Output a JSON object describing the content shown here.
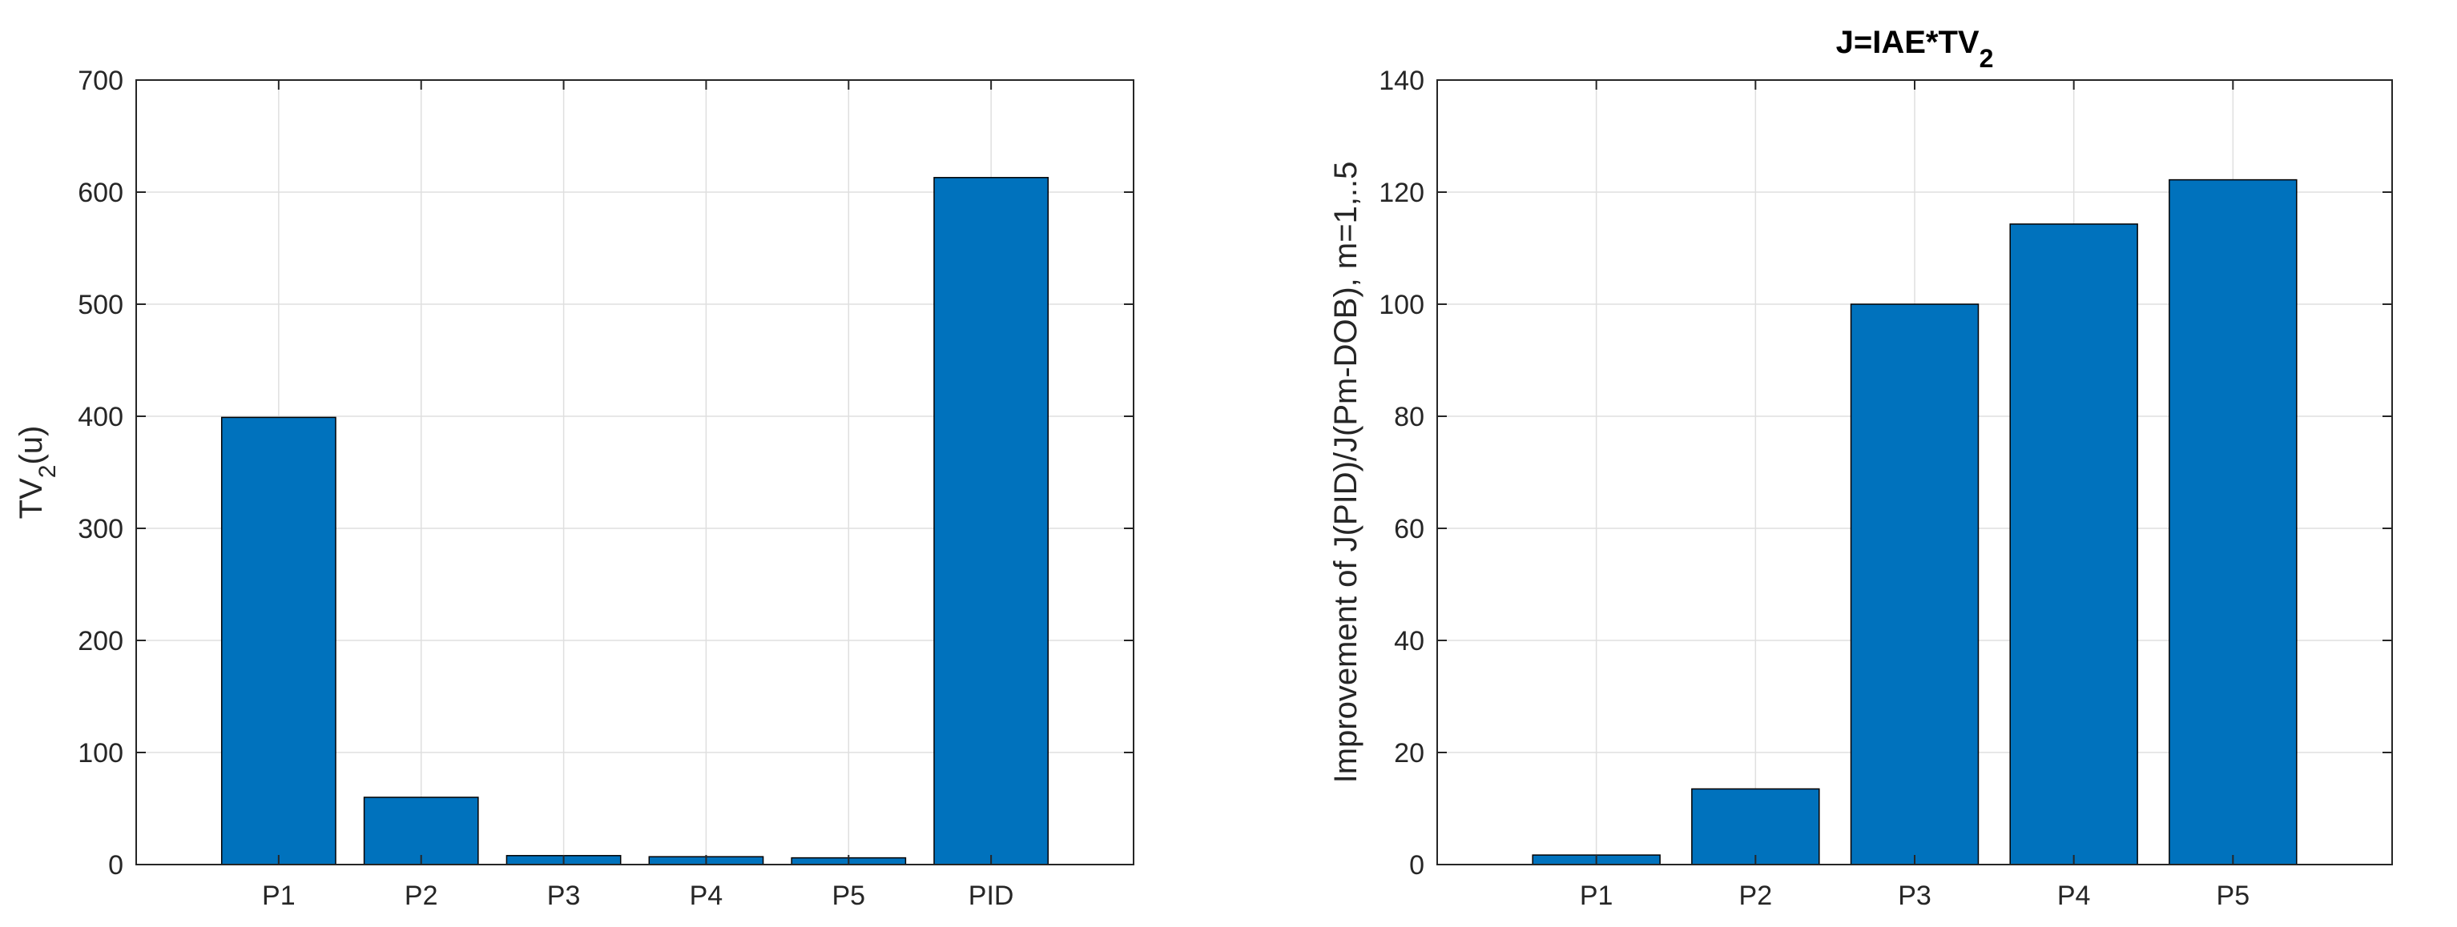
{
  "chart_data": [
    {
      "type": "bar",
      "title": "",
      "xlabel": "",
      "ylabel_main": "TV",
      "ylabel_sub": "2",
      "ylabel_tail": "(u)",
      "categories": [
        "P1",
        "P2",
        "P3",
        "P4",
        "P5",
        "PID"
      ],
      "values": [
        399,
        60,
        8,
        7,
        6,
        613
      ],
      "ylim": [
        0,
        700
      ],
      "yticks": [
        0,
        100,
        200,
        300,
        400,
        500,
        600,
        700
      ],
      "grid": true,
      "bar_color": "#0072BD"
    },
    {
      "type": "bar",
      "title_main": "J=IAE*TV",
      "title_sub": "2",
      "xlabel": "",
      "ylabel": "Improvement of J(PID)/J(Pm-DOB), m=1,..5",
      "categories": [
        "P1",
        "P2",
        "P3",
        "P4",
        "P5"
      ],
      "values": [
        1.7,
        13.5,
        100,
        114.3,
        122.2
      ],
      "ylim": [
        0,
        140
      ],
      "yticks": [
        0,
        20,
        40,
        60,
        80,
        100,
        120,
        140
      ],
      "grid": true,
      "bar_color": "#0072BD"
    }
  ]
}
